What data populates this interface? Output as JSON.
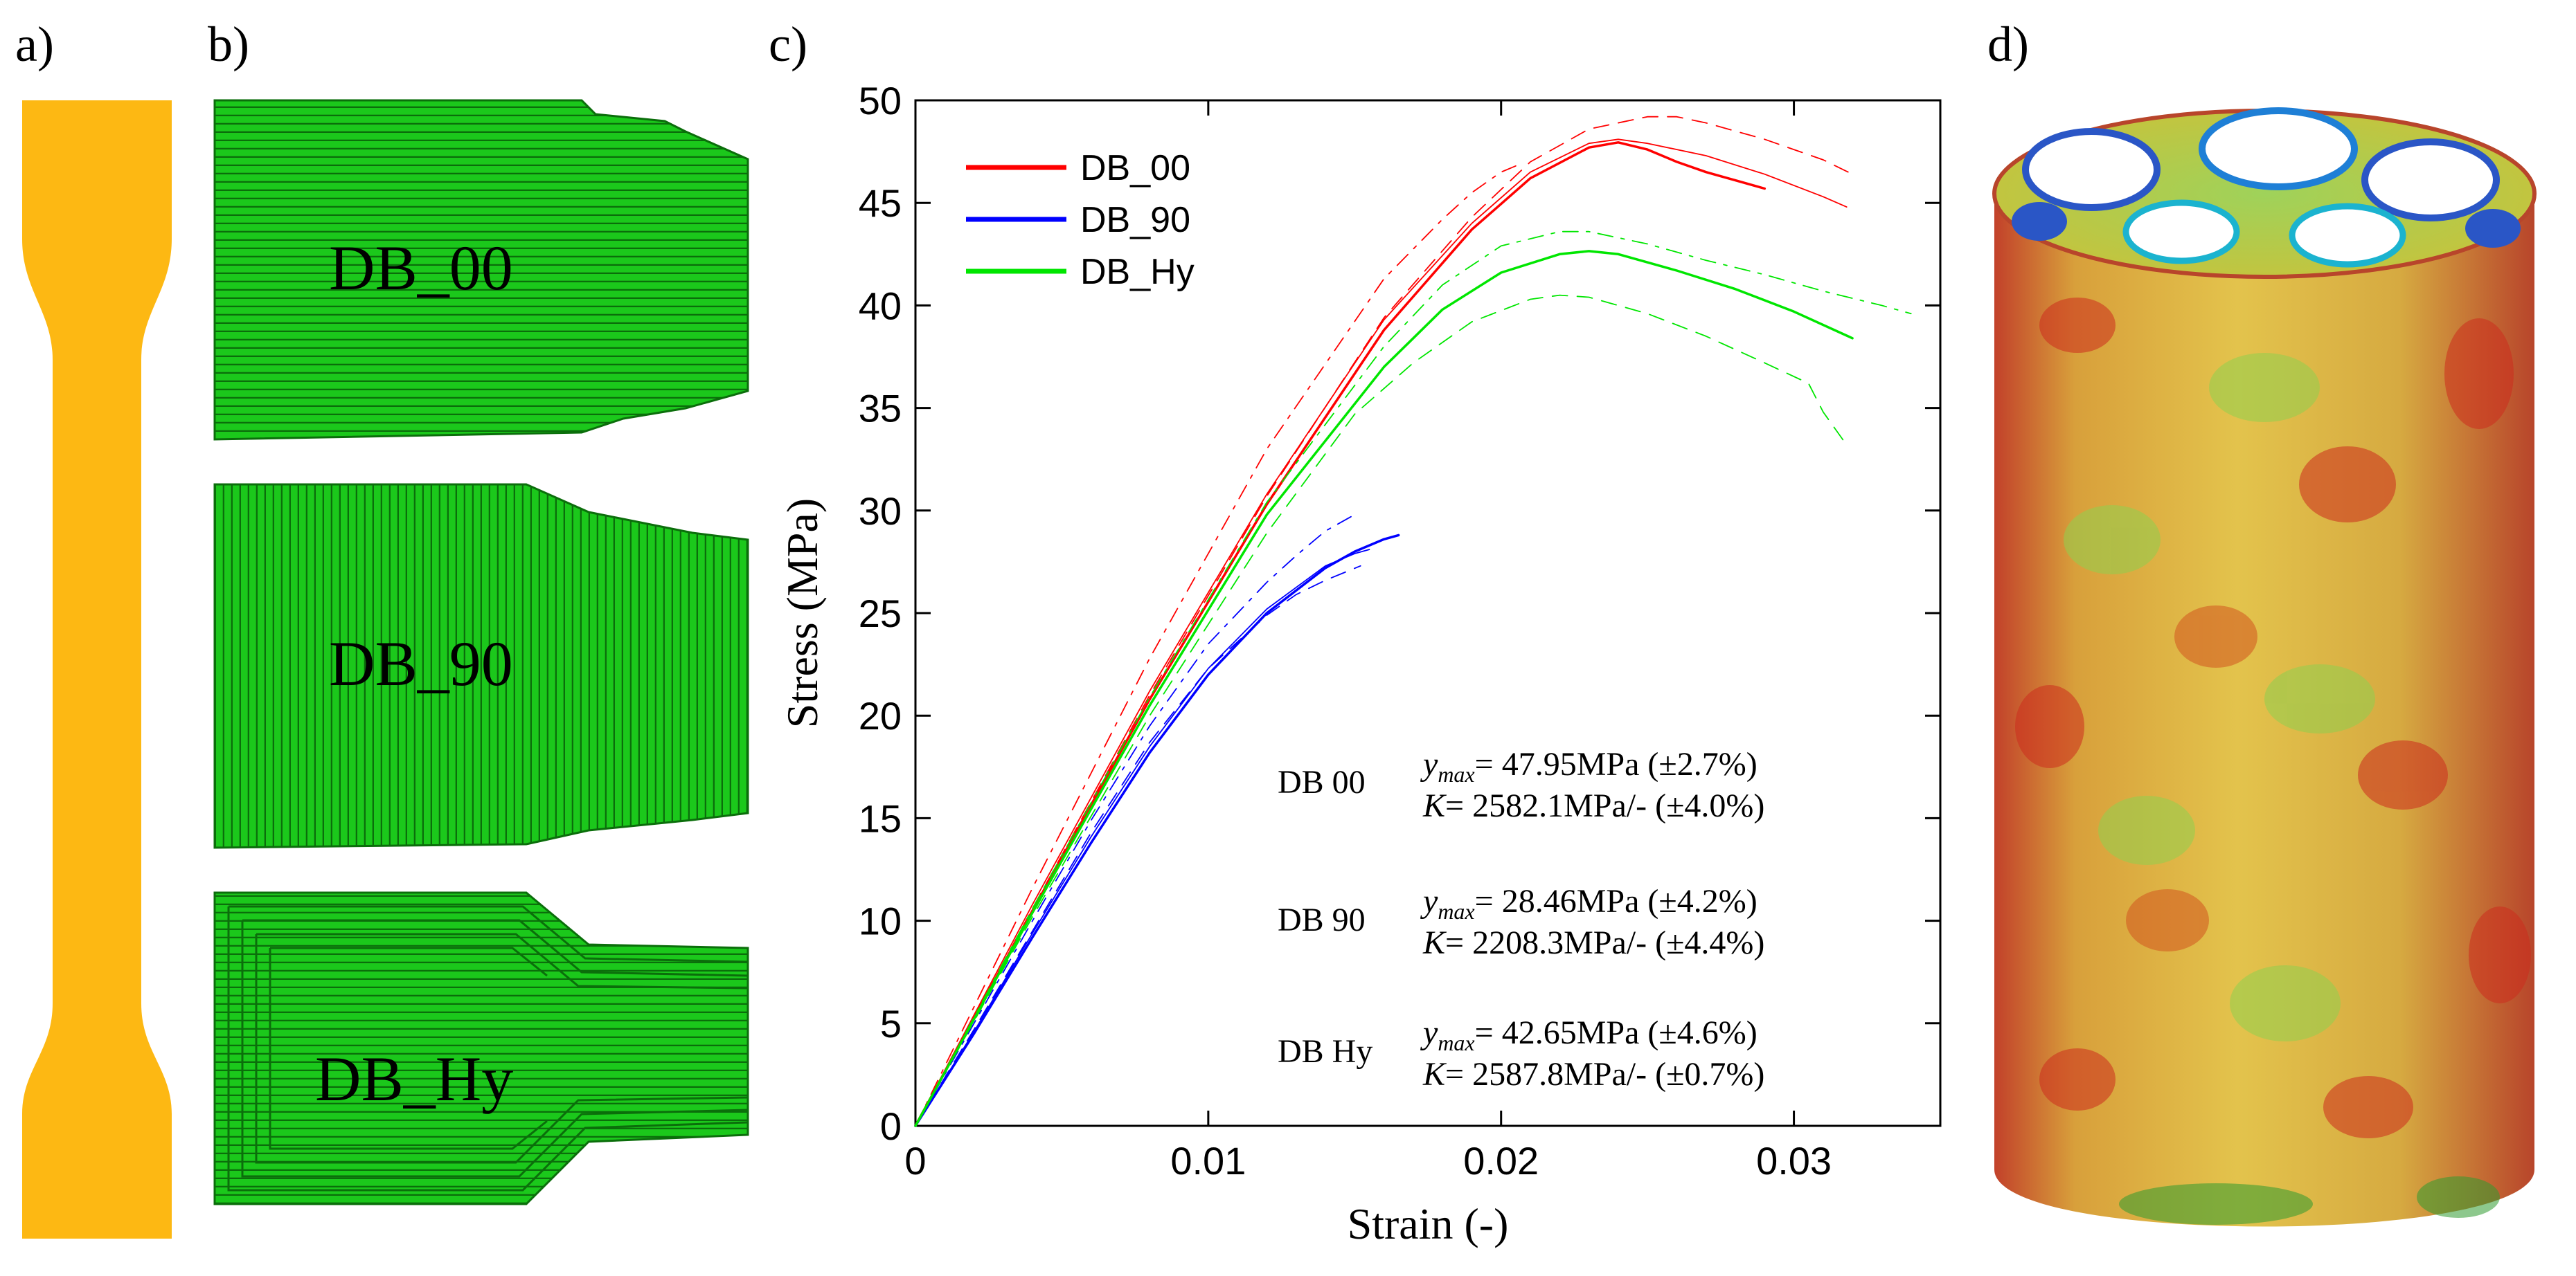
{
  "panel_labels": {
    "a": "a)",
    "b": "b)",
    "c": "c)",
    "d": "d)"
  },
  "specimens": [
    {
      "label": "DB_00",
      "raster": "0"
    },
    {
      "label": "DB_90",
      "raster": "90"
    },
    {
      "label": "DB_Hy",
      "raster": "hybrid"
    }
  ],
  "colors": {
    "dogbone": "#FDB813",
    "print_green": "#1BC81B",
    "print_line": "#0B6E0B",
    "db00": "#FF0000",
    "db90": "#0000FF",
    "dbhy": "#00E600"
  },
  "annotations": [
    {
      "name": "DB 00",
      "ymax": "= 47.95MPa (±2.7%)",
      "k": "= 2582.1MPa/- (±4.0%)"
    },
    {
      "name": "DB 90",
      "ymax": "= 28.46MPa (±4.2%)",
      "k": "= 2208.3MPa/- (±4.4%)"
    },
    {
      "name": "DB Hy",
      "ymax": "= 42.65MPa (±4.6%)",
      "k": "= 2587.8MPa/- (±0.7%)"
    }
  ],
  "chart_data": {
    "type": "line",
    "xlabel": "Strain (-)",
    "ylabel": "Stress (MPa)",
    "xlim": [
      0,
      0.035
    ],
    "ylim": [
      0,
      50
    ],
    "xticks": [
      0,
      0.01,
      0.02,
      0.03
    ],
    "xtick_labels": [
      "0",
      "0.01",
      "0.02",
      "0.03"
    ],
    "yticks": [
      0,
      5,
      10,
      15,
      20,
      25,
      30,
      35,
      40,
      45,
      50
    ],
    "ytick_labels": [
      "0",
      "5",
      "10",
      "15",
      "20",
      "25",
      "30",
      "35",
      "40",
      "45",
      "50"
    ],
    "legend": {
      "position": "top-left",
      "entries": [
        "DB_00",
        "DB_90",
        "DB_Hy"
      ]
    },
    "series": [
      {
        "name": "DB_00",
        "color": "#FF0000",
        "style": "solid",
        "width": 3.5,
        "x": [
          0,
          0.004,
          0.008,
          0.012,
          0.016,
          0.019,
          0.021,
          0.023,
          0.024,
          0.025,
          0.026,
          0.027,
          0.028,
          0.029
        ],
        "y": [
          0,
          10.5,
          20.8,
          30.3,
          38.8,
          43.7,
          46.2,
          47.7,
          47.95,
          47.6,
          47.0,
          46.5,
          46.1,
          45.7
        ]
      },
      {
        "name": "",
        "color": "#FF0000",
        "style": "solid",
        "width": 1.8,
        "x": [
          0,
          0.004,
          0.008,
          0.012,
          0.016,
          0.019,
          0.021,
          0.023,
          0.024,
          0.025,
          0.027,
          0.029,
          0.031,
          0.0318
        ],
        "y": [
          0,
          10.8,
          21.2,
          30.8,
          39.3,
          44.0,
          46.5,
          47.9,
          48.1,
          47.9,
          47.3,
          46.4,
          45.3,
          44.8
        ]
      },
      {
        "name": "",
        "color": "#FF0000",
        "style": "dashed",
        "width": 1.8,
        "x": [
          0,
          0.004,
          0.008,
          0.012,
          0.016,
          0.019,
          0.021,
          0.023,
          0.025,
          0.026,
          0.027,
          0.029,
          0.031,
          0.032
        ],
        "y": [
          0,
          10.6,
          21.0,
          30.7,
          39.4,
          44.3,
          47.0,
          48.6,
          49.2,
          49.2,
          48.9,
          48.1,
          47.1,
          46.4
        ]
      },
      {
        "name": "",
        "color": "#FF0000",
        "style": "dashdot",
        "width": 1.8,
        "x": [
          0,
          0.004,
          0.008,
          0.012,
          0.016,
          0.018,
          0.019,
          0.02,
          0.0205
        ],
        "y": [
          0,
          11.6,
          22.8,
          33.0,
          41.3,
          44.2,
          45.5,
          46.5,
          46.8
        ]
      },
      {
        "name": "DB_90",
        "color": "#0000FF",
        "style": "solid",
        "width": 3.5,
        "x": [
          0,
          0.002,
          0.004,
          0.006,
          0.008,
          0.01,
          0.012,
          0.014,
          0.015,
          0.016,
          0.0165
        ],
        "y": [
          0,
          4.5,
          9.2,
          13.8,
          18.2,
          22.0,
          25.0,
          27.2,
          28.0,
          28.6,
          28.8
        ]
      },
      {
        "name": "",
        "color": "#0000FF",
        "style": "solid",
        "width": 1.8,
        "x": [
          0,
          0.002,
          0.004,
          0.006,
          0.008,
          0.01,
          0.012,
          0.014,
          0.015,
          0.0155
        ],
        "y": [
          0,
          4.6,
          9.4,
          14.1,
          18.5,
          22.3,
          25.2,
          27.3,
          27.9,
          28.1
        ]
      },
      {
        "name": "",
        "color": "#0000FF",
        "style": "dashed",
        "width": 1.8,
        "x": [
          0,
          0.002,
          0.004,
          0.006,
          0.008,
          0.01,
          0.012,
          0.013,
          0.014,
          0.0152
        ],
        "y": [
          0,
          4.7,
          9.5,
          14.3,
          18.7,
          22.3,
          24.9,
          25.9,
          26.6,
          27.3
        ]
      },
      {
        "name": "",
        "color": "#0000FF",
        "style": "dashdot",
        "width": 1.8,
        "x": [
          0,
          0.002,
          0.004,
          0.006,
          0.008,
          0.01,
          0.012,
          0.013,
          0.014,
          0.015
        ],
        "y": [
          0,
          5.0,
          10.0,
          14.9,
          19.5,
          23.5,
          26.5,
          27.8,
          29.0,
          29.8
        ]
      },
      {
        "name": "DB_Hy",
        "color": "#00E600",
        "style": "solid",
        "width": 3.5,
        "x": [
          0,
          0.004,
          0.008,
          0.012,
          0.016,
          0.018,
          0.02,
          0.022,
          0.023,
          0.024,
          0.026,
          0.028,
          0.03,
          0.032
        ],
        "y": [
          0,
          10.4,
          20.5,
          29.8,
          37.0,
          39.8,
          41.6,
          42.5,
          42.65,
          42.5,
          41.7,
          40.8,
          39.7,
          38.4
        ]
      },
      {
        "name": "",
        "color": "#00E600",
        "style": "dashed",
        "width": 1.8,
        "x": [
          0,
          0.004,
          0.008,
          0.012,
          0.015,
          0.017,
          0.019,
          0.021,
          0.022,
          0.023,
          0.025,
          0.027,
          0.029,
          0.0305,
          0.031,
          0.0318
        ],
        "y": [
          0,
          10.2,
          20.0,
          28.9,
          34.7,
          37.2,
          39.2,
          40.3,
          40.5,
          40.4,
          39.6,
          38.5,
          37.2,
          36.2,
          34.8,
          33.2
        ]
      },
      {
        "name": "",
        "color": "#00E600",
        "style": "dashdot",
        "width": 1.8,
        "x": [
          0,
          0.004,
          0.008,
          0.012,
          0.016,
          0.018,
          0.02,
          0.022,
          0.023,
          0.025,
          0.027,
          0.029,
          0.031,
          0.033,
          0.034
        ],
        "y": [
          0,
          10.6,
          20.9,
          30.4,
          38.0,
          41.0,
          42.9,
          43.6,
          43.6,
          43.0,
          42.2,
          41.5,
          40.7,
          40.0,
          39.6
        ]
      }
    ]
  }
}
